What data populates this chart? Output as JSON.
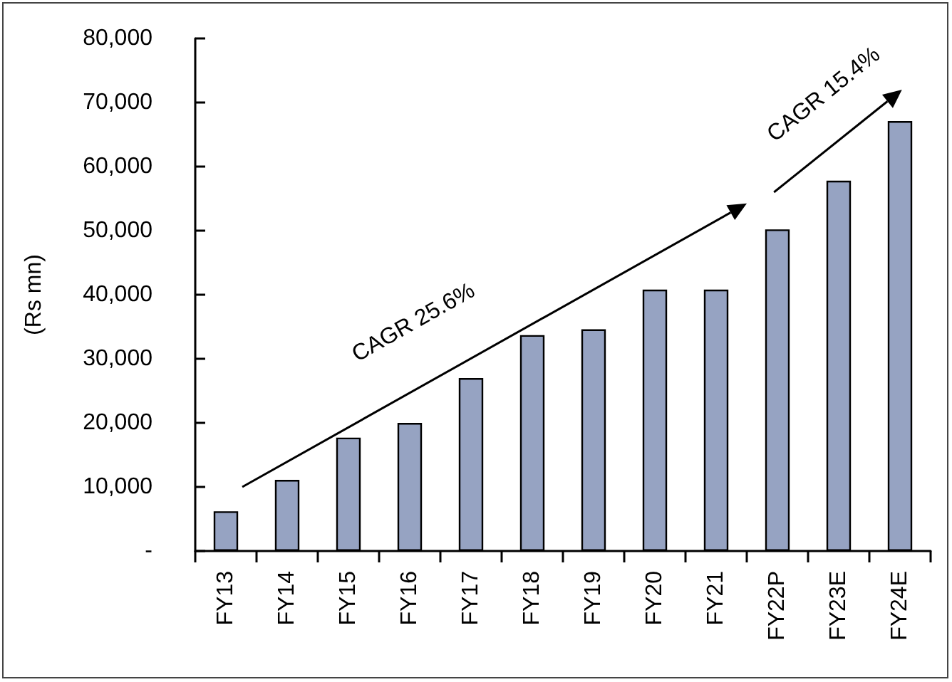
{
  "chart_data": {
    "type": "bar",
    "ylabel": "(Rs mn)",
    "categories": [
      "FY13",
      "FY14",
      "FY15",
      "FY16",
      "FY17",
      "FY18",
      "FY19",
      "FY20",
      "FY21",
      "FY22P",
      "FY23E",
      "FY24E"
    ],
    "values": [
      6200,
      11100,
      17700,
      20000,
      27000,
      33700,
      34600,
      40800,
      40800,
      50200,
      57800,
      67100
    ],
    "color": "#96a3c2",
    "ylim": [
      0,
      80000
    ],
    "yticks": [
      {
        "value": 0,
        "label": "-"
      },
      {
        "value": 10000,
        "label": "10,000"
      },
      {
        "value": 20000,
        "label": "20,000"
      },
      {
        "value": 30000,
        "label": "30,000"
      },
      {
        "value": 40000,
        "label": "40,000"
      },
      {
        "value": 50000,
        "label": "50,000"
      },
      {
        "value": 60000,
        "label": "60,000"
      },
      {
        "value": 70000,
        "label": "70,000"
      },
      {
        "value": 80000,
        "label": "80,000"
      }
    ],
    "annotations": [
      "CAGR 25.6%",
      "CAGR 15.4%"
    ]
  }
}
